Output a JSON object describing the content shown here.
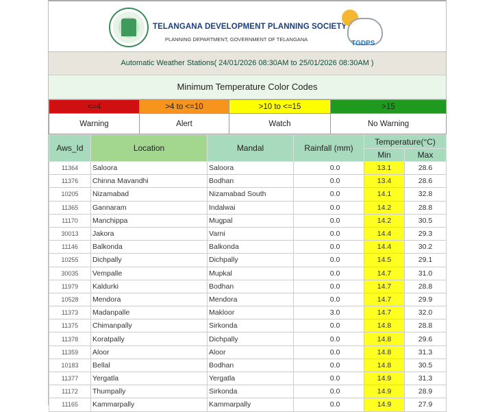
{
  "header": {
    "org_name": "TELANGANA DEVELOPMENT PLANNING SOCIETY",
    "department": "PLANNING DEPARTMENT, GOVERNMENT OF TELANGANA",
    "logo_text": "TGDPS"
  },
  "subtitle": "Automatic Weather Stations( 24/01/2026 08:30AM to 25/01/2026 08:30AM )",
  "color_codes": {
    "title": "Minimum Temperature Color Codes",
    "items": [
      {
        "range": "<=4",
        "label": "Warning",
        "color": "#d01010"
      },
      {
        "range": ">4 to <=10",
        "label": "Alert",
        "color": "#f7941d"
      },
      {
        "range": ">10 to <=15",
        "label": "Watch",
        "color": "#ffff00"
      },
      {
        "range": ">15",
        "label": "No Warning",
        "color": "#1f9a1f"
      }
    ]
  },
  "table": {
    "headers": {
      "aws_id": "Aws_Id",
      "location": "Location",
      "mandal": "Mandal",
      "rainfall": "Rainfall (mm)",
      "temperature": "Temperature(°C)",
      "min": "Min",
      "max": "Max"
    },
    "rows": [
      [
        "11364",
        "Saloora",
        "Saloora",
        "0.0",
        "13.1",
        "28.6"
      ],
      [
        "11376",
        "Chinna Mavandhi",
        "Bodhan",
        "0.0",
        "13.4",
        "28.6"
      ],
      [
        "10205",
        "Nizamabad",
        "Nizamabad South",
        "0.0",
        "14.1",
        "32.8"
      ],
      [
        "11365",
        "Gannaram",
        "Indalwai",
        "0.0",
        "14.2",
        "28.8"
      ],
      [
        "11170",
        "Manchippa",
        "Mugpal",
        "0.0",
        "14.2",
        "30.5"
      ],
      [
        "30013",
        "Jakora",
        "Varni",
        "0.0",
        "14.4",
        "29.3"
      ],
      [
        "11146",
        "Balkonda",
        "Balkonda",
        "0.0",
        "14.4",
        "30.2"
      ],
      [
        "10255",
        "Dichpally",
        "Dichpally",
        "0.0",
        "14.5",
        "29.1"
      ],
      [
        "30035",
        "Vempalle",
        "Mupkal",
        "0.0",
        "14.7",
        "31.0"
      ],
      [
        "11979",
        "Kaldurki",
        "Bodhan",
        "0.0",
        "14.7",
        "28.8"
      ],
      [
        "10528",
        "Mendora",
        "Mendora",
        "0.0",
        "14.7",
        "29.9"
      ],
      [
        "11373",
        "Madanpalle",
        "Makloor",
        "3.0",
        "14.7",
        "32.0"
      ],
      [
        "11375",
        "Chimanpally",
        "Sirkonda",
        "0.0",
        "14.8",
        "28.8"
      ],
      [
        "11378",
        "Koratpally",
        "Dichpally",
        "0.0",
        "14.8",
        "29.6"
      ],
      [
        "11359",
        "Aloor",
        "Aloor",
        "0.0",
        "14.8",
        "31.3"
      ],
      [
        "10183",
        "Bellal",
        "Bodhan",
        "0.0",
        "14.8",
        "30.5"
      ],
      [
        "11377",
        "Yergatla",
        "Yergatla",
        "0.0",
        "14.9",
        "31.3"
      ],
      [
        "11172",
        "Thumpally",
        "Sirkonda",
        "0.0",
        "14.9",
        "28.9"
      ],
      [
        "11165",
        "Kammarpally",
        "Kammarpally",
        "0.0",
        "14.9",
        "27.9"
      ]
    ]
  }
}
